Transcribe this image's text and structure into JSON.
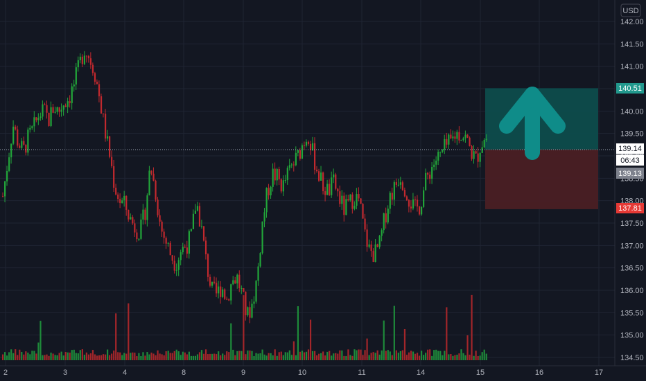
{
  "chart_data": {
    "type": "candlestick",
    "currency": "USD",
    "ylim": [
      134.4,
      142.2
    ],
    "y_ticks": [
      142.0,
      141.5,
      141.0,
      140.5,
      140.0,
      139.5,
      139.0,
      138.5,
      138.0,
      137.5,
      137.0,
      136.5,
      136.0,
      135.5,
      135.0,
      134.5
    ],
    "y_tick_labels": [
      "142.00",
      "141.50",
      "141.00",
      "140.50",
      "140.00",
      "139.50",
      "139.00",
      "138.50",
      "138.00",
      "137.50",
      "137.00",
      "136.50",
      "136.00",
      "135.50",
      "135.00",
      "134.50"
    ],
    "x_tick_labels": [
      "2",
      "3",
      "4",
      "8",
      "9",
      "10",
      "11",
      "14",
      "15",
      "16",
      "17"
    ],
    "session_path": [
      138.1,
      138.9,
      139.7,
      139.3,
      139.1,
      139.4,
      139.6,
      139.9,
      140.0,
      139.8,
      140.1,
      140.0,
      140.2,
      140.3,
      140.6,
      141.0,
      141.4,
      141.2,
      140.9,
      140.3,
      139.6,
      139.0,
      138.3,
      138.0,
      137.9,
      137.6,
      137.4,
      137.3,
      137.8,
      138.8,
      138.2,
      137.4,
      137.1,
      136.8,
      136.6,
      136.9,
      137.0,
      137.2,
      138.0,
      137.4,
      136.6,
      136.0,
      135.9,
      136.1,
      135.8,
      136.2,
      136.3,
      135.9,
      135.4,
      135.7,
      136.3,
      137.5,
      138.2,
      138.6,
      138.5,
      138.3,
      138.6,
      138.8,
      139.0,
      139.3,
      139.5,
      139.0,
      138.6,
      138.3,
      138.2,
      138.4,
      138.1,
      137.8,
      137.9,
      138.1,
      138.0,
      137.3,
      136.9,
      136.8,
      137.0,
      137.6,
      138.1,
      138.3,
      138.6,
      138.3,
      138.0,
      137.8,
      137.9,
      138.4,
      138.7,
      138.9,
      139.0,
      139.2,
      139.3,
      139.5,
      139.5,
      139.4,
      139.1,
      138.9,
      139.3,
      139.4
    ],
    "current_price": 139.14,
    "bid_price": 139.13,
    "countdown": "06:43",
    "take_profit": 140.51,
    "stop_loss": 137.81,
    "annotations": [
      {
        "type": "long-position",
        "entry": 139.14,
        "target": 140.51,
        "stop": 137.81
      },
      {
        "type": "up-arrow"
      }
    ],
    "colors": {
      "background": "#131722",
      "grid": "#1f2433",
      "up": "#26a69a",
      "down": "#ef5350",
      "volume_up": "#1e8a3a",
      "volume_down": "#a3262a",
      "candle_up": "#22a63a",
      "candle_down": "#c2292e",
      "target_zone": "#0d4c4c",
      "stop_zone": "#4a1f24",
      "arrow": "#0f8c89",
      "price_line": "#9aa0ad"
    }
  },
  "price_tags": {
    "take_profit": "140.51",
    "current": "139.14",
    "countdown": "06:43",
    "bid": "139.13",
    "stop_loss": "137.81"
  },
  "axis": {
    "currency": "USD"
  }
}
